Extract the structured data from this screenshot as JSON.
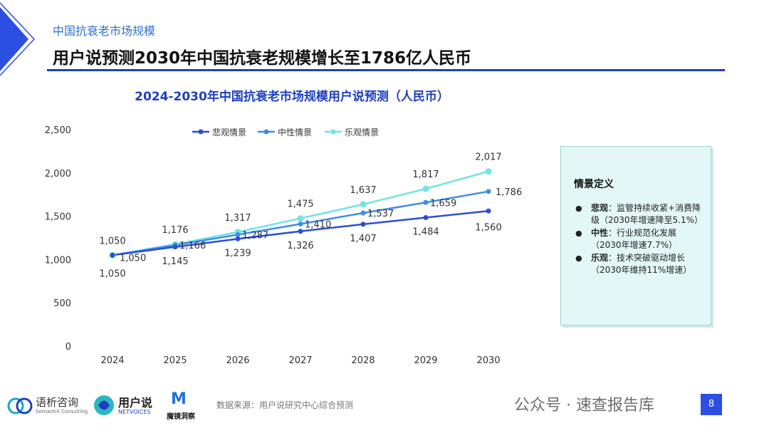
{
  "header": {
    "section_label": "中国抗衰老市场规模",
    "page_title": "用户说预测2030年中国抗衰老规模增长至1786亿人民币"
  },
  "chart_data": {
    "type": "line",
    "title": "2024-2030年中国抗衰老市场规模用户说预测（人民币）",
    "categories": [
      "2024",
      "2025",
      "2026",
      "2027",
      "2028",
      "2029",
      "2030"
    ],
    "series": [
      {
        "name": "悲观情景",
        "color": "#2b4fd4",
        "values": [
          1050,
          1145,
          1239,
          1326,
          1407,
          1484,
          1560
        ]
      },
      {
        "name": "中性情景",
        "color": "#3d8de8",
        "values": [
          1050,
          1166,
          1287,
          1410,
          1537,
          1659,
          1786
        ]
      },
      {
        "name": "乐观情景",
        "color": "#72e4e4",
        "values": [
          1050,
          1176,
          1317,
          1475,
          1637,
          1817,
          2017
        ]
      }
    ],
    "yticks": [
      "0",
      "500",
      "1,000",
      "1,500",
      "2,000",
      "2,500"
    ],
    "ylim": [
      0,
      2500
    ],
    "legend_position": "top",
    "grid": false,
    "labels": {
      "pess": [
        "1,050",
        "1,145",
        "1,239",
        "1,326",
        "1,407",
        "1,484",
        "1,560"
      ],
      "neut": [
        "1,050",
        "1,166",
        "1,287",
        "1,410",
        "1,537",
        "1,659",
        "1,786"
      ],
      "opt": [
        "1,050",
        "1,176",
        "1,317",
        "1,475",
        "1,637",
        "1,817",
        "2,017"
      ]
    }
  },
  "definition_box": {
    "title": "情景定义",
    "items": [
      {
        "term": "悲观",
        "text": "：监管持续收紧+消费降级（2030年增速降至5.1%）"
      },
      {
        "term": "中性",
        "text": "：行业规范化发展（2030年增速7.7%）"
      },
      {
        "term": "乐观",
        "text": "：技术突破驱动增长（2030年维持11%增速）"
      }
    ]
  },
  "footer": {
    "logo1_name": "语析咨询",
    "logo1_sub": "SemantiX Consulting",
    "logo2_name": "用户说",
    "logo2_sub": "NETVOICES",
    "logo3_name": "魔镜洞察",
    "source": "数据来源：用户说研究中心综合预测",
    "watermark": "公众号 · 速查报告库",
    "page_number": "8"
  },
  "colors": {
    "accent": "#1f3fbf",
    "section": "#2f6fd0"
  }
}
